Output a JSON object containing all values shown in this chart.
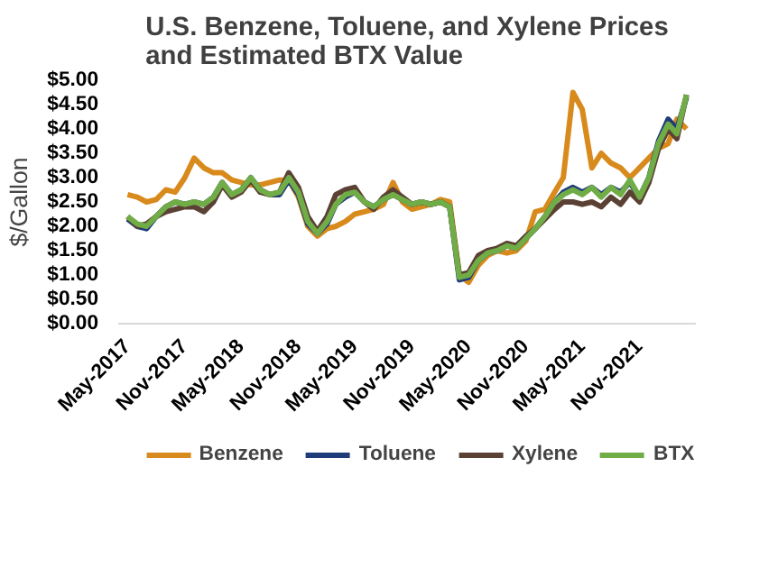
{
  "chart_data": {
    "type": "line",
    "title": "U.S. Benzene, Toluene, and Xylene Prices\nand Estimated BTX Value",
    "ylabel": "$/Gallon",
    "x": [
      "2017-05",
      "2017-06",
      "2017-07",
      "2017-08",
      "2017-09",
      "2017-10",
      "2017-11",
      "2017-12",
      "2018-01",
      "2018-02",
      "2018-03",
      "2018-04",
      "2018-05",
      "2018-06",
      "2018-07",
      "2018-08",
      "2018-09",
      "2018-10",
      "2018-11",
      "2018-12",
      "2019-01",
      "2019-02",
      "2019-03",
      "2019-04",
      "2019-05",
      "2019-06",
      "2019-07",
      "2019-08",
      "2019-09",
      "2019-10",
      "2019-11",
      "2019-12",
      "2020-01",
      "2020-02",
      "2020-03",
      "2020-04",
      "2020-05",
      "2020-06",
      "2020-07",
      "2020-08",
      "2020-09",
      "2020-10",
      "2020-11",
      "2020-12",
      "2021-01",
      "2021-02",
      "2021-03",
      "2021-04",
      "2021-05",
      "2021-06",
      "2021-07",
      "2021-08",
      "2021-09",
      "2021-10",
      "2021-11",
      "2021-12",
      "2022-01",
      "2022-02",
      "2022-03",
      "2022-04"
    ],
    "series": [
      {
        "name": "Benzene",
        "color": "#d88a1c",
        "values": [
          2.65,
          2.6,
          2.5,
          2.55,
          2.75,
          2.7,
          3.0,
          3.4,
          3.2,
          3.1,
          3.1,
          2.95,
          2.9,
          2.85,
          2.85,
          2.9,
          2.95,
          2.95,
          2.6,
          2.0,
          1.8,
          1.95,
          2.0,
          2.1,
          2.25,
          2.3,
          2.35,
          2.45,
          2.9,
          2.5,
          2.35,
          2.4,
          2.45,
          2.55,
          2.5,
          1.0,
          0.85,
          1.2,
          1.4,
          1.5,
          1.45,
          1.5,
          1.7,
          2.3,
          2.35,
          2.7,
          3.0,
          4.75,
          4.4,
          3.2,
          3.5,
          3.3,
          3.2,
          3.0,
          3.2,
          3.4,
          3.6,
          3.7,
          4.2,
          4.0
        ]
      },
      {
        "name": "Toluene",
        "color": "#1f3c7a",
        "values": [
          2.15,
          2.0,
          1.95,
          2.2,
          2.4,
          2.5,
          2.45,
          2.5,
          2.45,
          2.6,
          2.9,
          2.65,
          2.75,
          3.0,
          2.75,
          2.65,
          2.65,
          2.95,
          2.65,
          2.05,
          1.85,
          2.05,
          2.45,
          2.6,
          2.7,
          2.5,
          2.4,
          2.55,
          2.65,
          2.55,
          2.45,
          2.5,
          2.45,
          2.5,
          2.4,
          0.9,
          0.95,
          1.3,
          1.45,
          1.5,
          1.6,
          1.55,
          1.75,
          1.95,
          2.2,
          2.5,
          2.7,
          2.8,
          2.7,
          2.8,
          2.65,
          2.8,
          2.7,
          2.9,
          2.6,
          3.0,
          3.75,
          4.2,
          4.0,
          4.65
        ]
      },
      {
        "name": "Xylene",
        "color": "#5b4034",
        "values": [
          2.2,
          2.0,
          2.05,
          2.2,
          2.3,
          2.35,
          2.4,
          2.4,
          2.3,
          2.5,
          2.85,
          2.6,
          2.7,
          2.95,
          2.7,
          2.65,
          2.7,
          3.1,
          2.8,
          2.2,
          1.9,
          2.2,
          2.65,
          2.75,
          2.8,
          2.5,
          2.35,
          2.6,
          2.75,
          2.6,
          2.45,
          2.5,
          2.45,
          2.5,
          2.4,
          1.0,
          1.05,
          1.4,
          1.5,
          1.55,
          1.65,
          1.6,
          1.8,
          1.95,
          2.15,
          2.35,
          2.5,
          2.5,
          2.45,
          2.5,
          2.4,
          2.6,
          2.45,
          2.7,
          2.5,
          2.9,
          3.6,
          4.0,
          3.8,
          4.7
        ]
      },
      {
        "name": "BTX",
        "color": "#70ad47",
        "values": [
          2.2,
          2.05,
          2.0,
          2.2,
          2.4,
          2.5,
          2.45,
          2.5,
          2.45,
          2.6,
          2.9,
          2.65,
          2.75,
          3.0,
          2.75,
          2.65,
          2.7,
          3.0,
          2.7,
          2.1,
          1.85,
          2.1,
          2.45,
          2.65,
          2.7,
          2.5,
          2.4,
          2.55,
          2.65,
          2.55,
          2.45,
          2.5,
          2.45,
          2.5,
          2.4,
          0.95,
          1.0,
          1.3,
          1.45,
          1.5,
          1.6,
          1.55,
          1.75,
          1.95,
          2.2,
          2.5,
          2.65,
          2.75,
          2.65,
          2.8,
          2.6,
          2.8,
          2.65,
          2.95,
          2.6,
          3.0,
          3.7,
          4.1,
          3.9,
          4.7
        ]
      }
    ],
    "xlim": [
      "2017-04",
      "2022-05"
    ],
    "xticks": [
      {
        "value": "2017-05",
        "label": "May-2017"
      },
      {
        "value": "2017-11",
        "label": "Nov-2017"
      },
      {
        "value": "2018-05",
        "label": "May-2018"
      },
      {
        "value": "2018-11",
        "label": "Nov-2018"
      },
      {
        "value": "2019-05",
        "label": "May-2019"
      },
      {
        "value": "2019-11",
        "label": "Nov-2019"
      },
      {
        "value": "2020-05",
        "label": "May-2020"
      },
      {
        "value": "2020-11",
        "label": "Nov-2020"
      },
      {
        "value": "2021-05",
        "label": "May-2021"
      },
      {
        "value": "2021-11",
        "label": "Nov-2021"
      }
    ],
    "ylim": [
      0,
      5
    ],
    "yticks": [
      {
        "value": 0,
        "label": "$0.00"
      },
      {
        "value": 0.5,
        "label": "$0.50"
      },
      {
        "value": 1,
        "label": "$1.00"
      },
      {
        "value": 1.5,
        "label": "$1.50"
      },
      {
        "value": 2,
        "label": "$2.00"
      },
      {
        "value": 2.5,
        "label": "$2.50"
      },
      {
        "value": 3,
        "label": "$3.00"
      },
      {
        "value": 3.5,
        "label": "$3.50"
      },
      {
        "value": 4,
        "label": "$4.00"
      },
      {
        "value": 4.5,
        "label": "$4.50"
      },
      {
        "value": 5,
        "label": "$5.00"
      }
    ],
    "grid": false,
    "legend": "bottom",
    "marker": "none",
    "line_style": "solid"
  }
}
